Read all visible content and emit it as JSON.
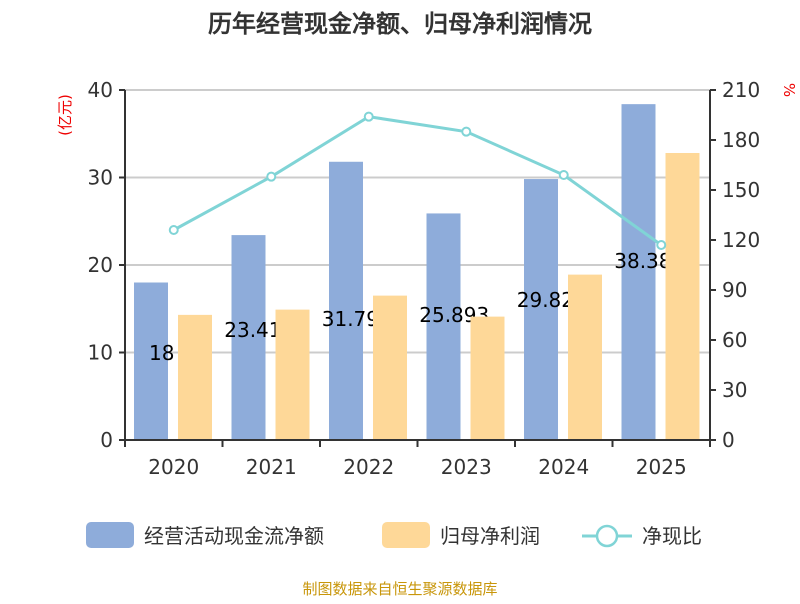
{
  "chart_data": {
    "type": "bar",
    "title": "历年经营现金净额、归母净利润情况",
    "categories": [
      "2020",
      "2021",
      "2022",
      "2023",
      "2024",
      "2025"
    ],
    "left_axis": {
      "label": "(亿元)",
      "ylim": [
        0,
        40
      ],
      "ticks": [
        "0",
        "10",
        "20",
        "30",
        "40"
      ]
    },
    "right_axis": {
      "label": "%",
      "ylim": [
        0,
        210
      ],
      "ticks": [
        "0",
        "30",
        "60",
        "90",
        "120",
        "150",
        "180",
        "210"
      ]
    },
    "grid": true,
    "legend_position": "bottom",
    "series": [
      {
        "name": "经营活动现金流净额",
        "type": "bar",
        "axis": "left",
        "color": "#8eacda",
        "values": [
          18,
          23.418,
          31.798,
          25.893,
          29.822,
          38.383
        ],
        "data_labels": [
          "18",
          "23.418",
          "31.798",
          "25.893",
          "29.822",
          "38.383"
        ]
      },
      {
        "name": "归母净利润",
        "type": "bar",
        "axis": "left",
        "color": "#fed898",
        "values": [
          14.3,
          14.9,
          16.5,
          14.1,
          18.9,
          32.8
        ]
      },
      {
        "name": "净现比",
        "type": "line",
        "axis": "right",
        "color": "#80d4d6",
        "values": [
          126,
          158,
          194,
          185,
          159,
          117
        ]
      }
    ]
  },
  "source": "制图数据来自恒生聚源数据库"
}
